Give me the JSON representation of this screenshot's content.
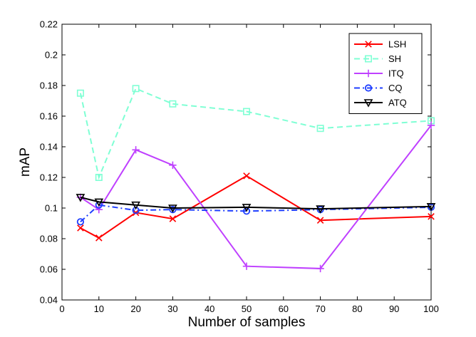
{
  "chart_data": {
    "type": "line",
    "title": "",
    "xlabel": "Number of samples",
    "ylabel": "mAP",
    "xlim": [
      0,
      100
    ],
    "ylim": [
      0.04,
      0.22
    ],
    "xticks": [
      0,
      10,
      20,
      30,
      40,
      50,
      60,
      70,
      80,
      90,
      100
    ],
    "yticks": [
      0.04,
      0.06,
      0.08,
      0.1,
      0.12,
      0.14,
      0.16,
      0.18,
      0.2,
      0.22
    ],
    "xtick_labels": [
      "0",
      "10",
      "20",
      "30",
      "40",
      "50",
      "60",
      "70",
      "80",
      "90",
      "100"
    ],
    "ytick_labels": [
      "0.04",
      "0.06",
      "0.08",
      "0.1",
      "0.12",
      "0.14",
      "0.16",
      "0.18",
      "0.2",
      "0.22"
    ],
    "grid": false,
    "legend_position": "top-right",
    "x": [
      5,
      10,
      20,
      30,
      50,
      70,
      100
    ],
    "series": [
      {
        "name": "LSH",
        "color": "#ff0000",
        "dash": "solid",
        "marker": "x",
        "values": [
          0.087,
          0.0805,
          0.097,
          0.093,
          0.121,
          0.092,
          0.0945
        ]
      },
      {
        "name": "SH",
        "color": "#7fffd4",
        "dash": "dashed",
        "marker": "square",
        "values": [
          0.175,
          0.12,
          0.178,
          0.168,
          0.163,
          0.152,
          0.157
        ]
      },
      {
        "name": "ITQ",
        "color": "#bf40ff",
        "dash": "solid",
        "marker": "plus",
        "values": [
          0.107,
          0.099,
          0.138,
          0.128,
          0.062,
          0.0605,
          0.154
        ]
      },
      {
        "name": "CQ",
        "color": "#1f3fff",
        "dash": "dashdot",
        "marker": "circle",
        "values": [
          0.091,
          0.102,
          0.0985,
          0.099,
          0.098,
          0.099,
          0.1005
        ]
      },
      {
        "name": "ATQ",
        "color": "#000000",
        "dash": "solid",
        "marker": "triangle-down",
        "values": [
          0.107,
          0.104,
          0.102,
          0.1,
          0.1005,
          0.0995,
          0.101
        ]
      }
    ]
  }
}
